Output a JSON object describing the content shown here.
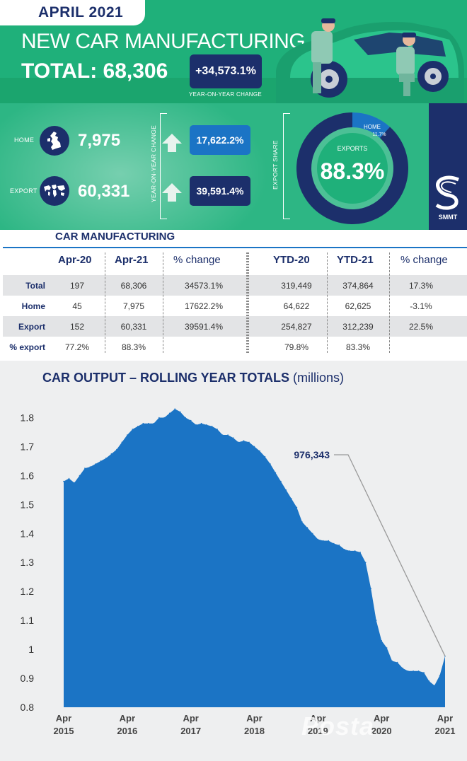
{
  "header": {
    "month": "APRIL 2021",
    "headline": "NEW CAR MANUFACTURING",
    "total_label": "TOTAL: 68,306",
    "yoy_value": "+34,573.1%",
    "yoy_caption": "YEAR-ON-YEAR CHANGE"
  },
  "breakdown": {
    "home": {
      "label": "HOME",
      "value": "7,975",
      "change": "17,622.2%"
    },
    "export": {
      "label": "EXPORT",
      "value": "60,331",
      "change": "39,591.4%"
    },
    "yoy_vertical_label": "YEAR-ON-YEAR CHANGE",
    "export_share_label": "EXPORT SHARE",
    "donut": {
      "exports_label": "EXPORTS",
      "exports_value": "88.3%",
      "exports_share": 88.3,
      "home_label": "HOME",
      "home_value": "11.7%",
      "home_share": 11.7,
      "colors": {
        "exports": "#1c2f6b",
        "home": "#1b74c5",
        "center": "#1fb07a"
      }
    }
  },
  "brand": {
    "name": "SMMT"
  },
  "table": {
    "title": "CAR MANUFACTURING",
    "headers": [
      "Apr-20",
      "Apr-21",
      "% change",
      "YTD-20",
      "YTD-21",
      "% change"
    ],
    "rows": [
      {
        "label": "Total",
        "cells": [
          "197",
          "68,306",
          "34573.1%",
          "319,449",
          "374,864",
          "17.3%"
        ]
      },
      {
        "label": "Home",
        "cells": [
          "45",
          "7,975",
          "17622.2%",
          "64,622",
          "62,625",
          "-3.1%"
        ]
      },
      {
        "label": "Export",
        "cells": [
          "152",
          "60,331",
          "39591.4%",
          "254,827",
          "312,239",
          "22.5%"
        ]
      },
      {
        "label": "% export",
        "cells": [
          "77.2%",
          "88.3%",
          "",
          "79.8%",
          "83.3%",
          ""
        ]
      }
    ]
  },
  "chart_data": {
    "type": "area",
    "title": "CAR OUTPUT – ROLLING YEAR TOTALS",
    "unit_label": "(millions)",
    "ylim": [
      0.8,
      1.85
    ],
    "yticks": [
      0.8,
      0.9,
      1,
      1.1,
      1.2,
      1.3,
      1.4,
      1.5,
      1.6,
      1.7,
      1.8
    ],
    "ytick_labels": [
      "0.8",
      "0.9",
      "1",
      "1.1",
      "1.2",
      "1.3",
      "1.4",
      "1.5",
      "1.6",
      "1.7",
      "1.8"
    ],
    "xtick_labels": [
      [
        "Apr",
        "2015"
      ],
      [
        "Apr",
        "2016"
      ],
      [
        "Apr",
        "2017"
      ],
      [
        "Apr",
        "2018"
      ],
      [
        "Apr",
        "2019"
      ],
      [
        "Apr",
        "2020"
      ],
      [
        "Apr",
        "2021"
      ]
    ],
    "x_start": "Apr 2015",
    "x": [
      "Apr 2015",
      "May 2015",
      "Jun 2015",
      "Jul 2015",
      "Aug 2015",
      "Sep 2015",
      "Oct 2015",
      "Nov 2015",
      "Dec 2015",
      "Jan 2016",
      "Feb 2016",
      "Mar 2016",
      "Apr 2016",
      "May 2016",
      "Jun 2016",
      "Jul 2016",
      "Aug 2016",
      "Sep 2016",
      "Oct 2016",
      "Nov 2016",
      "Dec 2016",
      "Jan 2017",
      "Feb 2017",
      "Mar 2017",
      "Apr 2017",
      "May 2017",
      "Jun 2017",
      "Jul 2017",
      "Aug 2017",
      "Sep 2017",
      "Oct 2017",
      "Nov 2017",
      "Dec 2017",
      "Jan 2018",
      "Feb 2018",
      "Mar 2018",
      "Apr 2018",
      "May 2018",
      "Jun 2018",
      "Jul 2018",
      "Aug 2018",
      "Sep 2018",
      "Oct 2018",
      "Nov 2018",
      "Dec 2018",
      "Jan 2019",
      "Feb 2019",
      "Mar 2019",
      "Apr 2019",
      "May 2019",
      "Jun 2019",
      "Jul 2019",
      "Aug 2019",
      "Sep 2019",
      "Oct 2019",
      "Nov 2019",
      "Dec 2019",
      "Jan 2020",
      "Feb 2020",
      "Mar 2020",
      "Apr 2020",
      "May 2020",
      "Jun 2020",
      "Jul 2020",
      "Aug 2020",
      "Sep 2020",
      "Oct 2020",
      "Nov 2020",
      "Dec 2020",
      "Jan 2021",
      "Feb 2021",
      "Mar 2021",
      "Apr 2021"
    ],
    "values": [
      1.58,
      1.59,
      1.575,
      1.6,
      1.625,
      1.63,
      1.64,
      1.65,
      1.66,
      1.675,
      1.69,
      1.715,
      1.74,
      1.76,
      1.77,
      1.78,
      1.78,
      1.78,
      1.8,
      1.8,
      1.815,
      1.83,
      1.82,
      1.8,
      1.79,
      1.775,
      1.78,
      1.775,
      1.77,
      1.76,
      1.74,
      1.74,
      1.73,
      1.715,
      1.72,
      1.715,
      1.7,
      1.685,
      1.665,
      1.64,
      1.61,
      1.58,
      1.55,
      1.52,
      1.49,
      1.44,
      1.42,
      1.4,
      1.38,
      1.375,
      1.375,
      1.365,
      1.36,
      1.345,
      1.34,
      1.34,
      1.335,
      1.3,
      1.21,
      1.1,
      1.03,
      1.005,
      0.96,
      0.955,
      0.935,
      0.925,
      0.925,
      0.925,
      0.92,
      0.89,
      0.875,
      0.91,
      0.976343
    ],
    "annotation": {
      "label": "976,343",
      "point": "Apr 2021",
      "value": 0.976343
    },
    "color": "#1b74c5",
    "grid": false,
    "legend": "none"
  },
  "watermark": "Posta"
}
